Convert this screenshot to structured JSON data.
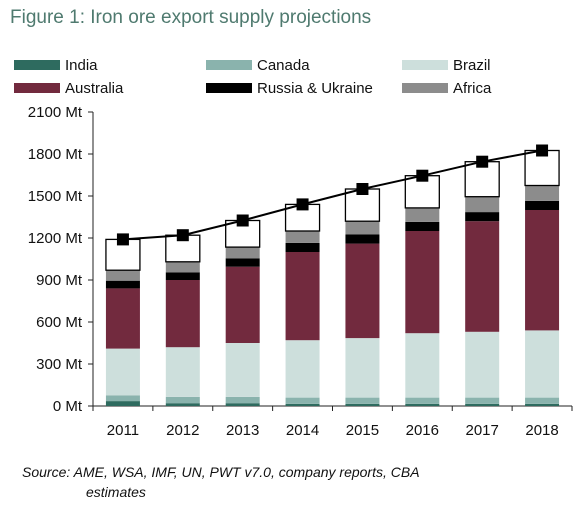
{
  "figure": {
    "title": "Figure 1: Iron ore export supply projections",
    "source_line1": "Source: AME, WSA, IMF, UN, PWT v7.0, company reports, CBA",
    "source_line2": "estimates"
  },
  "chart_data": {
    "type": "bar",
    "stacked": true,
    "title": "Figure 1: Iron ore export supply projections",
    "xlabel": "",
    "ylabel": "",
    "categories": [
      "2011",
      "2012",
      "2013",
      "2014",
      "2015",
      "2016",
      "2017",
      "2018"
    ],
    "ylim": [
      0,
      2100
    ],
    "yticks": [
      0,
      300,
      600,
      900,
      1200,
      1500,
      1800,
      2100
    ],
    "ytick_labels": [
      "0 Mt",
      "300 Mt",
      "600 Mt",
      "900 Mt",
      "1200 Mt",
      "1500 Mt",
      "1800 Mt",
      "2100 Mt"
    ],
    "grid": false,
    "legend_position": "top",
    "series": [
      {
        "name": "India",
        "color": "#2e6b5f",
        "values": [
          35,
          20,
          20,
          15,
          15,
          15,
          15,
          15
        ]
      },
      {
        "name": "Canada",
        "color": "#8ab3ad",
        "values": [
          40,
          45,
          45,
          45,
          45,
          45,
          45,
          45
        ]
      },
      {
        "name": "Brazil",
        "color": "#cddfdc",
        "values": [
          335,
          355,
          385,
          410,
          425,
          460,
          470,
          480
        ]
      },
      {
        "name": "Australia",
        "color": "#722a3e",
        "values": [
          430,
          480,
          545,
          630,
          675,
          730,
          790,
          860
        ]
      },
      {
        "name": "Russia & Ukraine",
        "color": "#000000",
        "values": [
          55,
          55,
          60,
          65,
          65,
          65,
          65,
          65
        ]
      },
      {
        "name": "Africa",
        "color": "#8c8c8c",
        "values": [
          75,
          75,
          80,
          85,
          95,
          100,
          110,
          110
        ]
      },
      {
        "color": "#ffffff",
        "values": [
          220,
          190,
          190,
          190,
          230,
          230,
          250,
          250
        ]
      }
    ],
    "line": {
      "color": "#000000",
      "values": [
        1190,
        1220,
        1325,
        1440,
        1550,
        1645,
        1745,
        1825
      ]
    },
    "legend": [
      {
        "label": "India",
        "color": "#2e6b5f"
      },
      {
        "label": "Canada",
        "color": "#8ab3ad"
      },
      {
        "label": "Brazil",
        "color": "#cddfdc"
      },
      {
        "label": "Australia",
        "color": "#722a3e"
      },
      {
        "label": "Russia & Ukraine",
        "color": "#000000"
      },
      {
        "label": "Africa",
        "color": "#8c8c8c"
      }
    ]
  }
}
